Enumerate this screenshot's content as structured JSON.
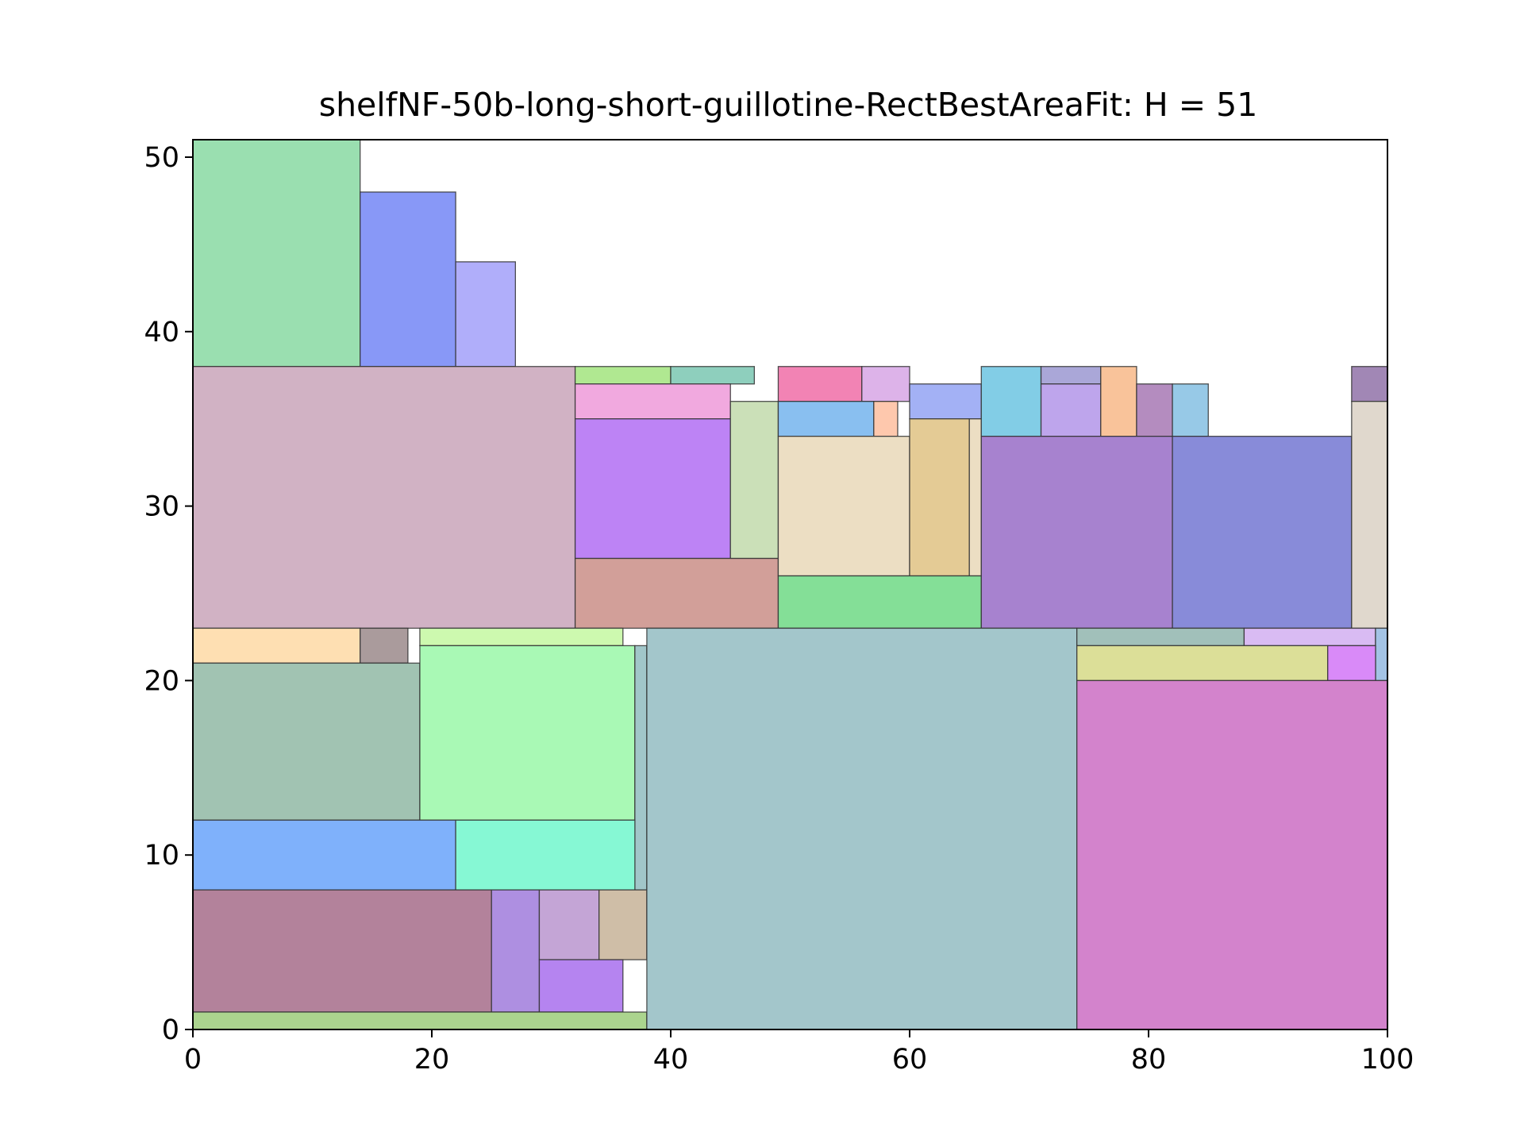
{
  "chart_data": {
    "type": "rectangle-packing",
    "title": "shelfNF-50b-long-short-guillotine-RectBestAreaFit: H = 51",
    "xlabel": "",
    "ylabel": "",
    "xlim": [
      0,
      100
    ],
    "ylim": [
      0,
      51
    ],
    "xticks": [
      0,
      20,
      40,
      60,
      80,
      100
    ],
    "yticks": [
      0,
      10,
      20,
      30,
      40,
      50
    ],
    "grid": false,
    "rects": [
      {
        "x": 0,
        "y": 38,
        "w": 14,
        "h": 13,
        "color": "#9adfb0"
      },
      {
        "x": 14,
        "y": 38,
        "w": 8,
        "h": 10,
        "color": "#8898f7"
      },
      {
        "x": 22,
        "y": 38,
        "w": 5,
        "h": 6,
        "color": "#b0aefa"
      },
      {
        "x": 0,
        "y": 23,
        "w": 32,
        "h": 15,
        "color": "#d1b2c4"
      },
      {
        "x": 32,
        "y": 37,
        "w": 8,
        "h": 1,
        "color": "#b0e891"
      },
      {
        "x": 40,
        "y": 37,
        "w": 7,
        "h": 1,
        "color": "#8ecfbd"
      },
      {
        "x": 32,
        "y": 35,
        "w": 13,
        "h": 2,
        "color": "#f1a9df"
      },
      {
        "x": 32,
        "y": 27,
        "w": 13,
        "h": 8,
        "color": "#bd83f5"
      },
      {
        "x": 45,
        "y": 27,
        "w": 4,
        "h": 9,
        "color": "#cbe0b8"
      },
      {
        "x": 32,
        "y": 23,
        "w": 17,
        "h": 4,
        "color": "#d29f99"
      },
      {
        "x": 49,
        "y": 36,
        "w": 7,
        "h": 2,
        "color": "#f283b4"
      },
      {
        "x": 56,
        "y": 36,
        "w": 4,
        "h": 2,
        "color": "#ddb3e9"
      },
      {
        "x": 49,
        "y": 34,
        "w": 8,
        "h": 2,
        "color": "#89bff0"
      },
      {
        "x": 57,
        "y": 34,
        "w": 2,
        "h": 2,
        "color": "#fec8ad"
      },
      {
        "x": 60,
        "y": 35,
        "w": 6,
        "h": 2,
        "color": "#a3b1f5"
      },
      {
        "x": 49,
        "y": 26,
        "w": 11,
        "h": 8,
        "color": "#ecdec3"
      },
      {
        "x": 60,
        "y": 26,
        "w": 5,
        "h": 9,
        "color": "#e4cb95"
      },
      {
        "x": 65,
        "y": 26,
        "w": 1,
        "h": 9,
        "color": "#ecdec3"
      },
      {
        "x": 49,
        "y": 23,
        "w": 17,
        "h": 3,
        "color": "#84df97"
      },
      {
        "x": 66,
        "y": 34,
        "w": 5,
        "h": 4,
        "color": "#82cde6"
      },
      {
        "x": 71,
        "y": 37,
        "w": 5,
        "h": 1,
        "color": "#aaa7d8"
      },
      {
        "x": 71,
        "y": 34,
        "w": 5,
        "h": 3,
        "color": "#bea5ec"
      },
      {
        "x": 76,
        "y": 34,
        "w": 3,
        "h": 4,
        "color": "#f9c39a"
      },
      {
        "x": 79,
        "y": 34,
        "w": 3,
        "h": 3,
        "color": "#b48cbf"
      },
      {
        "x": 82,
        "y": 34,
        "w": 3,
        "h": 3,
        "color": "#97c9e7"
      },
      {
        "x": 66,
        "y": 23,
        "w": 16,
        "h": 11,
        "color": "#a782cf"
      },
      {
        "x": 82,
        "y": 23,
        "w": 15,
        "h": 11,
        "color": "#888bd9"
      },
      {
        "x": 97,
        "y": 36,
        "w": 3,
        "h": 2,
        "color": "#a187b5"
      },
      {
        "x": 97,
        "y": 23,
        "w": 3,
        "h": 13,
        "color": "#e0d8cd"
      },
      {
        "x": 0,
        "y": 21,
        "w": 14,
        "h": 2,
        "color": "#fedfb2"
      },
      {
        "x": 14,
        "y": 21,
        "w": 4,
        "h": 2,
        "color": "#aa9b9c"
      },
      {
        "x": 19,
        "y": 22,
        "w": 17,
        "h": 1,
        "color": "#cdf9af"
      },
      {
        "x": 0,
        "y": 12,
        "w": 19,
        "h": 9,
        "color": "#a1c3b2"
      },
      {
        "x": 19,
        "y": 12,
        "w": 18,
        "h": 10,
        "color": "#a9f9b5"
      },
      {
        "x": 37,
        "y": 8,
        "w": 1,
        "h": 14,
        "color": "#a1c6c9"
      },
      {
        "x": 0,
        "y": 8,
        "w": 22,
        "h": 4,
        "color": "#7fb1fb"
      },
      {
        "x": 22,
        "y": 8,
        "w": 15,
        "h": 4,
        "color": "#86f8d4"
      },
      {
        "x": 0,
        "y": 1,
        "w": 25,
        "h": 7,
        "color": "#b3829b"
      },
      {
        "x": 25,
        "y": 1,
        "w": 4,
        "h": 7,
        "color": "#ae8fe1"
      },
      {
        "x": 29,
        "y": 4,
        "w": 5,
        "h": 4,
        "color": "#c4a5d6"
      },
      {
        "x": 34,
        "y": 4,
        "w": 4,
        "h": 4,
        "color": "#cfbea7"
      },
      {
        "x": 29,
        "y": 1,
        "w": 7,
        "h": 3,
        "color": "#b584f0"
      },
      {
        "x": 0,
        "y": 0,
        "w": 38,
        "h": 1,
        "color": "#abd48e"
      },
      {
        "x": 38,
        "y": 0,
        "w": 36,
        "h": 23,
        "color": "#a3c6cb"
      },
      {
        "x": 74,
        "y": 22,
        "w": 14,
        "h": 1,
        "color": "#a1c0ba"
      },
      {
        "x": 88,
        "y": 22,
        "w": 11,
        "h": 1,
        "color": "#d9bbf3"
      },
      {
        "x": 99,
        "y": 20,
        "w": 1,
        "h": 3,
        "color": "#a3c3e5"
      },
      {
        "x": 74,
        "y": 20,
        "w": 21,
        "h": 2,
        "color": "#dcdf98"
      },
      {
        "x": 95,
        "y": 20,
        "w": 4,
        "h": 2,
        "color": "#d98af8"
      },
      {
        "x": 74,
        "y": 0,
        "w": 26,
        "h": 20,
        "color": "#d383cc"
      }
    ]
  }
}
